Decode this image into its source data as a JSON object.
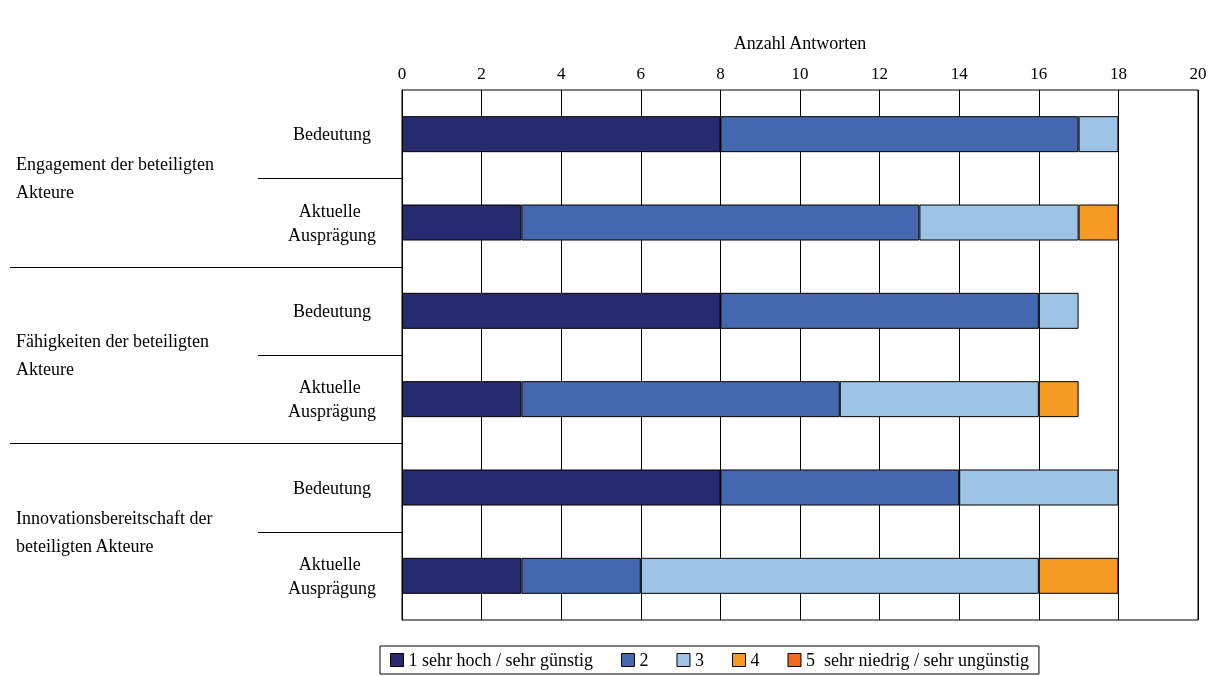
{
  "chart_data": {
    "type": "bar",
    "orientation": "horizontal",
    "stacked": true,
    "xlabel": "Anzahl Antworten",
    "categories": [
      "Bedeutung",
      "Aktuelle Ausprägung",
      "Bedeutung",
      "Aktuelle Ausprägung",
      "Bedeutung",
      "Aktuelle Ausprägung"
    ],
    "annotations": [
      "Engagement der beteiligten Akteure",
      "Fähigkeiten der beteiligten Akteure",
      "Innovationsbereitschaft der beteiligten Akteure"
    ],
    "series": [
      {
        "name": "1 sehr hoch / sehr günstig",
        "color": "#262a6e",
        "values": [
          8,
          3,
          8,
          3,
          8,
          3
        ]
      },
      {
        "name": "2",
        "color": "#4468b0",
        "values": [
          9,
          10,
          8,
          8,
          6,
          3
        ]
      },
      {
        "name": "3",
        "color": "#9dc3e6",
        "values": [
          1,
          4,
          1,
          5,
          4,
          10
        ]
      },
      {
        "name": "4",
        "color": "#f59a23",
        "values": [
          0,
          1,
          0,
          1,
          0,
          2
        ]
      },
      {
        "name": "5  sehr niedrig / sehr ungünstig",
        "color": "#f26b1d",
        "values": [
          0,
          0,
          0,
          0,
          0,
          0
        ]
      }
    ],
    "xlim": [
      0,
      20
    ],
    "xticks": [
      0,
      2,
      4,
      6,
      8,
      10,
      12,
      14,
      16,
      18,
      20
    ],
    "grid": "x",
    "legend": "bottom"
  }
}
